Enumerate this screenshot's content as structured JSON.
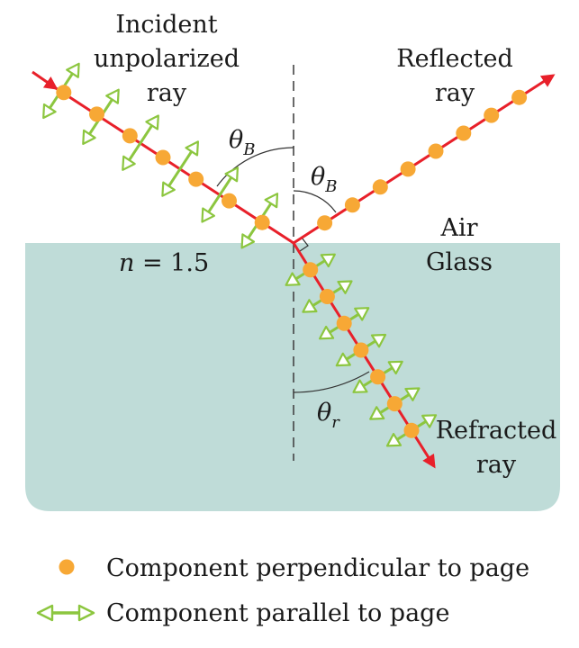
{
  "labels": {
    "incident": [
      "Incident",
      "unpolarized",
      "ray"
    ],
    "reflected": [
      "Reflected",
      "ray"
    ],
    "refracted": [
      "Refracted",
      "ray"
    ],
    "air": "Air",
    "glass": "Glass",
    "n_symbol": "n",
    "n_value": " = 1.5",
    "theta_symbol": "θ",
    "theta_b_sub": "B",
    "theta_r_sub": "r"
  },
  "legend": {
    "perpendicular": "Component perpendicular to page",
    "parallel": "Component parallel to page"
  },
  "colors": {
    "ray": "#e8202a",
    "dot": "#f7a835",
    "arrow_outline": "#8cc63f",
    "glass": "#bfdcd8",
    "normal": "#444444",
    "arc": "#333333"
  }
}
